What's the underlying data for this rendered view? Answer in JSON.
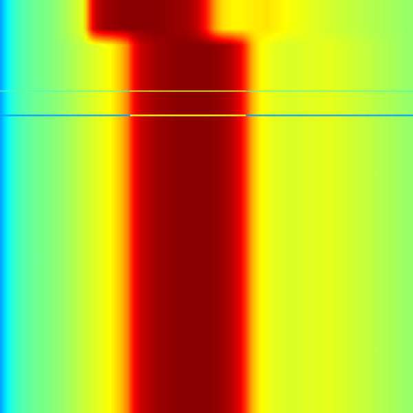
{
  "chart_data": {
    "type": "heatmap",
    "colormap": "jet",
    "colormap_stops": [
      "#00008f",
      "#0000ff",
      "#00ffff",
      "#ffff00",
      "#ff0000",
      "#800000"
    ],
    "value_range": [
      0,
      1
    ],
    "title": "",
    "xlabel": "",
    "ylabel": "",
    "grid": false,
    "legend": "none",
    "column_profile_after_shift": {
      "x": [
        0,
        0.01,
        0.02,
        0.03,
        0.05,
        0.08,
        0.12,
        0.16,
        0.2,
        0.24,
        0.27,
        0.29,
        0.31,
        0.32,
        0.34,
        0.38,
        0.43,
        0.5,
        0.53,
        0.56,
        0.585,
        0.6,
        0.61,
        0.63,
        0.66,
        0.7,
        0.8,
        0.9,
        1.0
      ],
      "values": [
        0.28,
        0.33,
        0.38,
        0.42,
        0.45,
        0.48,
        0.5,
        0.53,
        0.57,
        0.6,
        0.63,
        0.68,
        0.75,
        0.85,
        0.93,
        0.97,
        0.99,
        0.99,
        0.98,
        0.95,
        0.88,
        0.78,
        0.7,
        0.63,
        0.6,
        0.59,
        0.6,
        0.56,
        0.52
      ]
    },
    "column_profile_before_shift": {
      "x": [
        0,
        0.01,
        0.02,
        0.03,
        0.05,
        0.08,
        0.12,
        0.15,
        0.18,
        0.2,
        0.21,
        0.22,
        0.23,
        0.25,
        0.3,
        0.38,
        0.45,
        0.48,
        0.5,
        0.52,
        0.54,
        0.57,
        0.6,
        0.65,
        0.7,
        0.8,
        0.9,
        1.0
      ],
      "values": [
        0.28,
        0.33,
        0.38,
        0.42,
        0.45,
        0.48,
        0.5,
        0.53,
        0.57,
        0.6,
        0.7,
        0.85,
        0.93,
        0.97,
        0.99,
        0.99,
        0.97,
        0.93,
        0.85,
        0.72,
        0.65,
        0.63,
        0.64,
        0.65,
        0.62,
        0.58,
        0.55,
        0.52
      ]
    },
    "shift_y_range": [
      0.07,
      0.11
    ],
    "anomaly_rows": [
      {
        "y": 0.221,
        "value": 0.45,
        "red_band_value": 0.62
      },
      {
        "y": 0.279,
        "value": 0.28,
        "red_band_value": 0.65
      }
    ]
  }
}
